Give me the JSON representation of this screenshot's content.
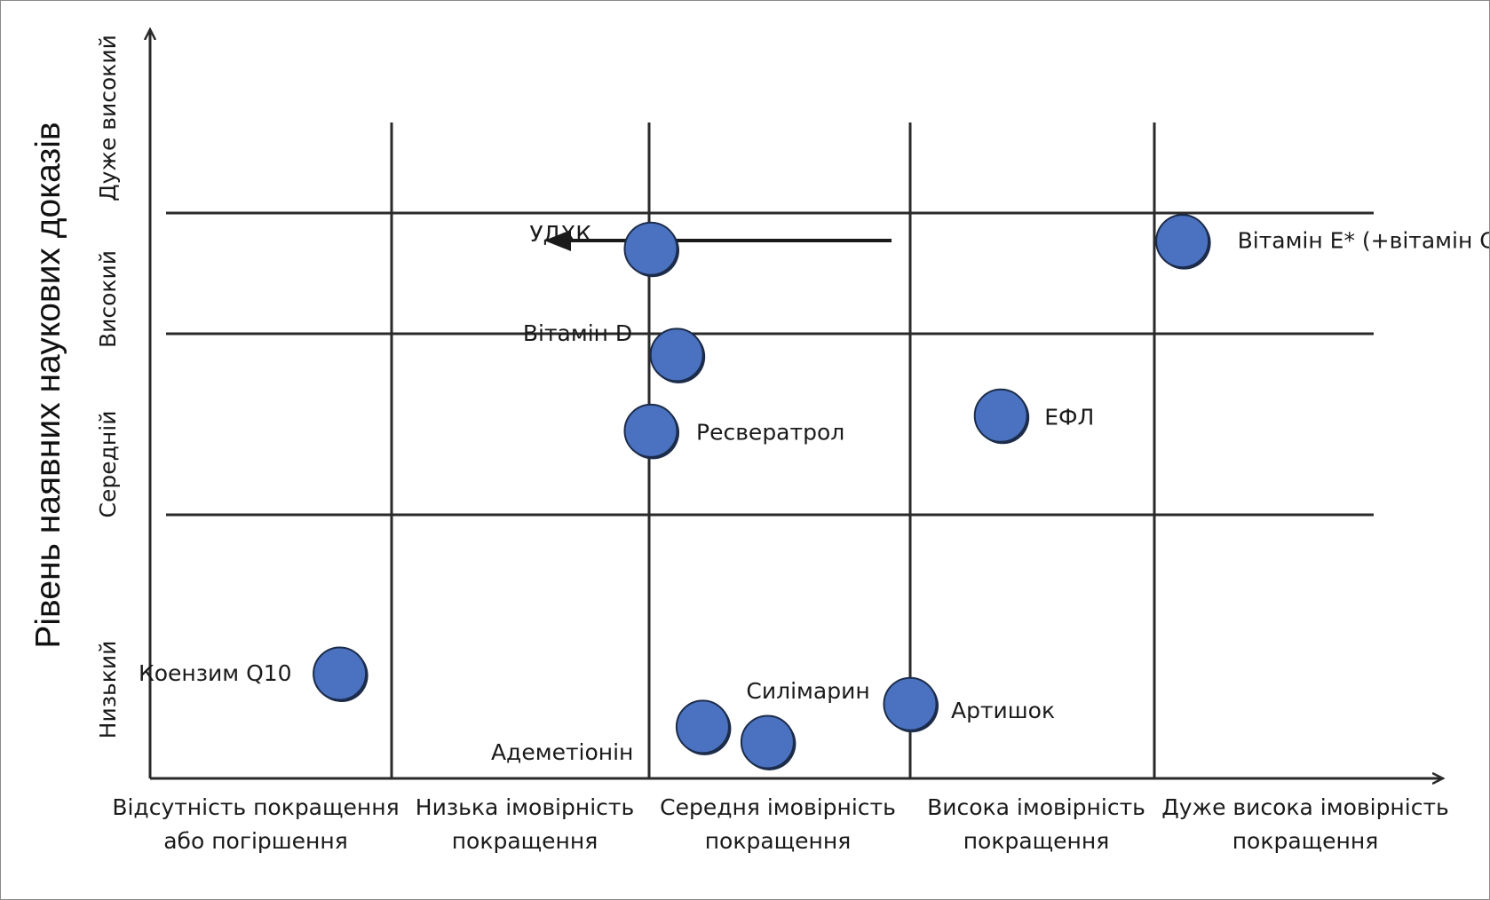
{
  "chart_data": {
    "type": "scatter",
    "ylabel": "Рівень наявних наукових доказів",
    "x_categories": [
      [
        "Відсутність покращення",
        "або погіршення"
      ],
      [
        "Низька імовірність",
        "покращення"
      ],
      [
        "Середня імовірність",
        "покращення"
      ],
      [
        "Висока імовірність",
        "покращення"
      ],
      [
        "Дуже висока імовірність",
        "покращення"
      ]
    ],
    "y_categories": [
      "Низький",
      "Середній",
      "Високий",
      "Дуже високий"
    ],
    "points": [
      {
        "label": "УДХК",
        "x": 1.0,
        "y": 2.8
      },
      {
        "label": "Вітамін D",
        "x": 1.1,
        "y": 2.1
      },
      {
        "label": "Ресвератрол",
        "x": 1.0,
        "y": 1.6
      },
      {
        "label": "ЕФЛ",
        "x": 2.35,
        "y": 1.7
      },
      {
        "label": "Вітамін Е* (+вітамін С)",
        "x": 3.05,
        "y": 2.85
      },
      {
        "label": "Коензим Q10",
        "x": -0.2,
        "y": 0.0
      },
      {
        "label": "Адеметіонін",
        "x": 1.2,
        "y": -0.35
      },
      {
        "label": "Силімарин",
        "x": 1.45,
        "y": -0.45
      },
      {
        "label": "Артишок",
        "x": 2.0,
        "y": -0.2
      }
    ],
    "arrow": {
      "from": "Вітамін Е* (+вітамін С)",
      "direction": "left"
    },
    "colors": {
      "marker": "#4a72c1",
      "marker_edge": "#1c2c4a",
      "lines": "#2a2a2a"
    }
  }
}
